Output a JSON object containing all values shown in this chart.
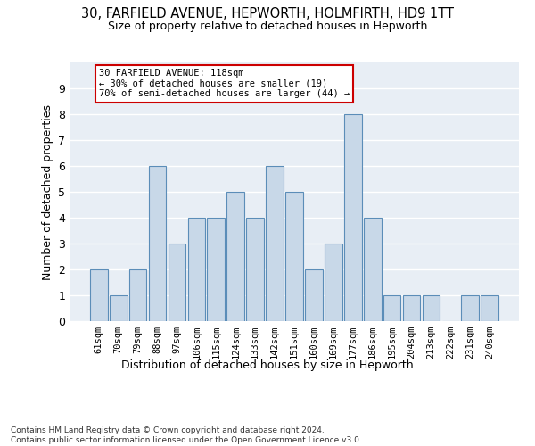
{
  "title": "30, FARFIELD AVENUE, HEPWORTH, HOLMFIRTH, HD9 1TT",
  "subtitle": "Size of property relative to detached houses in Hepworth",
  "xlabel": "Distribution of detached houses by size in Hepworth",
  "ylabel": "Number of detached properties",
  "categories": [
    "61sqm",
    "70sqm",
    "79sqm",
    "88sqm",
    "97sqm",
    "106sqm",
    "115sqm",
    "124sqm",
    "133sqm",
    "142sqm",
    "151sqm",
    "160sqm",
    "169sqm",
    "177sqm",
    "186sqm",
    "195sqm",
    "204sqm",
    "213sqm",
    "222sqm",
    "231sqm",
    "240sqm"
  ],
  "values": [
    2,
    1,
    2,
    6,
    3,
    4,
    4,
    5,
    4,
    6,
    5,
    2,
    3,
    8,
    4,
    1,
    1,
    1,
    0,
    1,
    1
  ],
  "bar_color": "#c8d8e8",
  "bar_edge_color": "#5b8db8",
  "ylim": [
    0,
    10
  ],
  "yticks": [
    0,
    1,
    2,
    3,
    4,
    5,
    6,
    7,
    8,
    9
  ],
  "annotation_text": "30 FARFIELD AVENUE: 118sqm\n← 30% of detached houses are smaller (19)\n70% of semi-detached houses are larger (44) →",
  "annotation_box_color": "#ffffff",
  "annotation_box_edge": "#cc0000",
  "bg_color": "#e8eef5",
  "footer": "Contains HM Land Registry data © Crown copyright and database right 2024.\nContains public sector information licensed under the Open Government Licence v3.0."
}
